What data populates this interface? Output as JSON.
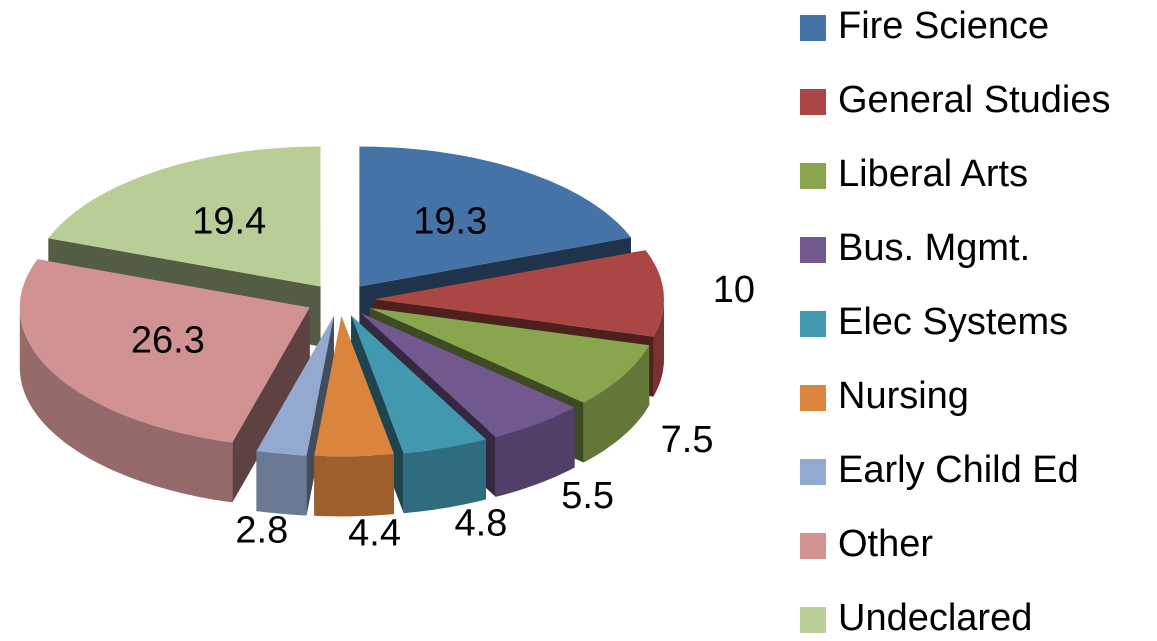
{
  "chart_data": {
    "type": "pie",
    "three_d": true,
    "exploded": true,
    "categories": [
      "Fire Science",
      "General Studies",
      "Liberal Arts",
      "Bus. Mgmt.",
      "Elec Systems",
      "Nursing",
      "Early Child Ed",
      "Other",
      "Undeclared"
    ],
    "values": [
      19.3,
      10,
      7.5,
      5.5,
      4.8,
      4.4,
      2.8,
      26.3,
      19.4
    ],
    "colors": [
      "#4572a7",
      "#aa4643",
      "#89a54e",
      "#71588f",
      "#4198af",
      "#db843d",
      "#93a9cf",
      "#d19392",
      "#b9cd96"
    ],
    "legend": "right"
  }
}
